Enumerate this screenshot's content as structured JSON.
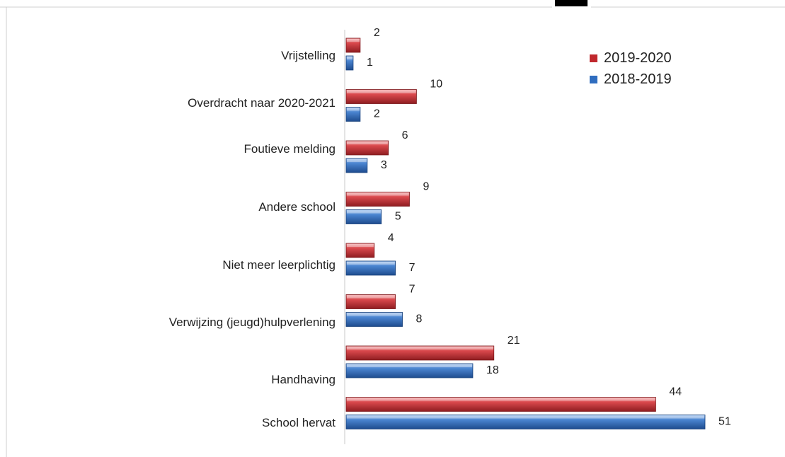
{
  "chart_data": {
    "type": "bar",
    "orientation": "horizontal",
    "title": "",
    "xlabel": "",
    "ylabel": "",
    "xlim": [
      0,
      51
    ],
    "grid": false,
    "legend_position": "top-right",
    "categories": [
      "Vrijstelling",
      "Overdracht naar 2020-2021",
      "Foutieve melding",
      "Andere school",
      "Niet meer leerplichtig",
      "Verwijzing (jeugd)hulpverlening",
      "Handhaving",
      "School hervat"
    ],
    "series": [
      {
        "name": "2019-2020",
        "color": "#c0282d",
        "values": [
          2,
          10,
          6,
          9,
          4,
          7,
          21,
          44
        ]
      },
      {
        "name": "2018-2019",
        "color": "#2f6dbf",
        "values": [
          1,
          2,
          3,
          5,
          7,
          8,
          18,
          51
        ]
      }
    ]
  }
}
